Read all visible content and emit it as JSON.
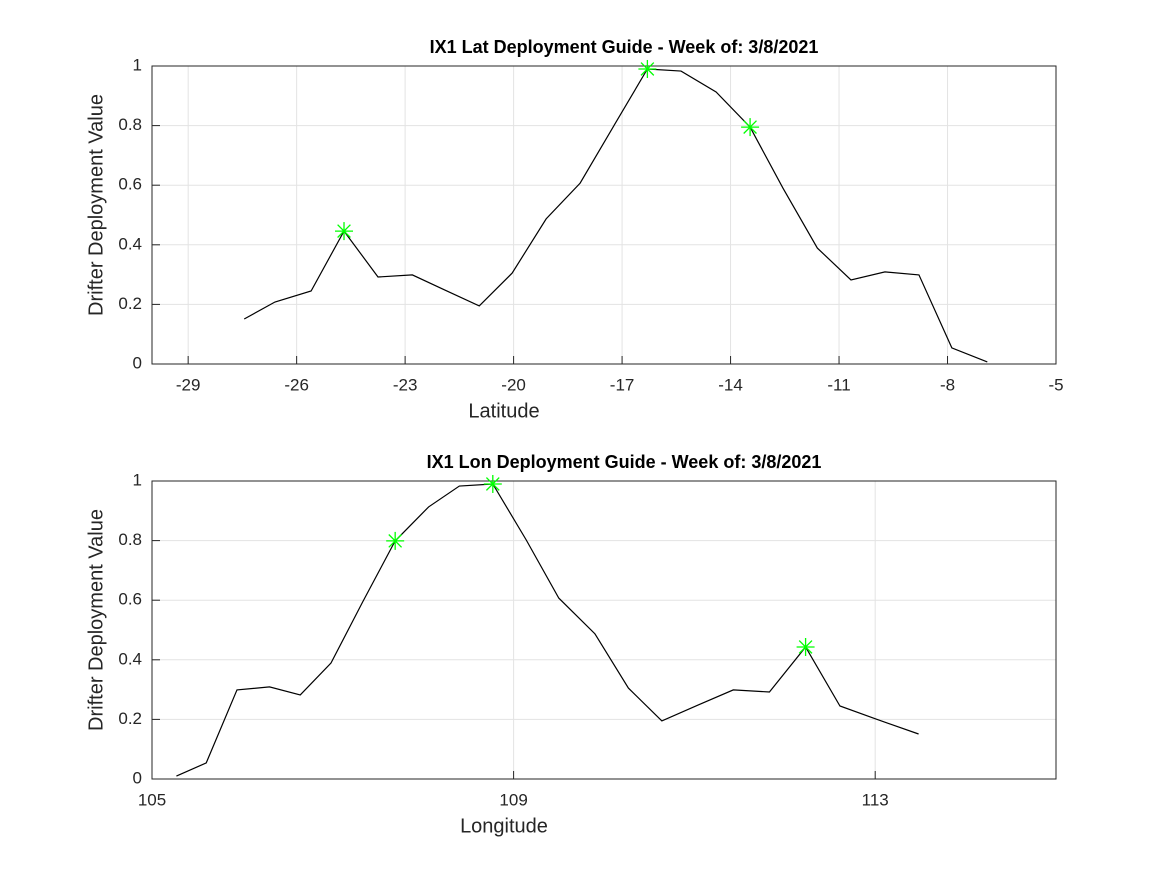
{
  "chart_data": [
    {
      "type": "line",
      "title": "IX1 Lat Deployment Guide - Week of: 3/8/2021",
      "xlabel": "Latitude",
      "ylabel": "Drifter Deployment Value",
      "xlim": [
        -30,
        -5
      ],
      "xticks": [
        -29,
        -26,
        -23,
        -20,
        -17,
        -14,
        -11,
        -8,
        -5
      ],
      "ylim": [
        0,
        1
      ],
      "yticks": [
        0,
        0.2,
        0.4,
        0.6,
        0.8,
        1
      ],
      "grid": true,
      "series": [
        {
          "color": "#000000",
          "x": [
            -27.45,
            -26.6,
            -25.6,
            -24.69,
            -23.75,
            -22.8,
            -21.9,
            -20.95,
            -20.04,
            -19.1,
            -18.16,
            -17.2,
            -16.3,
            -15.37,
            -14.4,
            -13.46,
            -12.55,
            -11.6,
            -10.67,
            -9.73,
            -8.79,
            -7.88,
            -6.9
          ],
          "values": [
            0.151,
            0.208,
            0.245,
            0.446,
            0.292,
            0.299,
            0.248,
            0.195,
            0.305,
            0.487,
            0.607,
            0.805,
            0.99,
            0.983,
            0.913,
            0.795,
            0.59,
            0.389,
            0.282,
            0.309,
            0.299,
            0.054,
            0.007
          ]
        },
        {
          "color": "#00ff00",
          "marker": "*",
          "line": false,
          "x": [
            -24.69,
            -16.3,
            -13.46
          ],
          "values": [
            0.446,
            0.99,
            0.795
          ]
        }
      ]
    },
    {
      "type": "line",
      "title": "IX1 Lon Deployment Guide - Week of: 3/8/2021",
      "xlabel": "Longitude",
      "ylabel": "Drifter Deployment Value",
      "xlim": [
        105,
        115
      ],
      "xticks": [
        105,
        109,
        113
      ],
      "ylim": [
        0,
        1
      ],
      "yticks": [
        0,
        0.2,
        0.4,
        0.6,
        0.8,
        1
      ],
      "grid": true,
      "series": [
        {
          "color": "#000000",
          "x": [
            105.27,
            105.6,
            105.94,
            106.3,
            106.64,
            106.98,
            107.33,
            107.69,
            108.06,
            108.4,
            108.77,
            109.14,
            109.5,
            109.9,
            110.27,
            110.64,
            111.04,
            111.43,
            111.83,
            112.23,
            112.61,
            113.01,
            113.48
          ],
          "values": [
            0.01,
            0.054,
            0.299,
            0.309,
            0.282,
            0.389,
            0.594,
            0.799,
            0.913,
            0.983,
            0.99,
            0.802,
            0.607,
            0.487,
            0.305,
            0.195,
            0.248,
            0.299,
            0.292,
            0.443,
            0.245,
            0.201,
            0.151
          ]
        },
        {
          "color": "#00ff00",
          "marker": "*",
          "line": false,
          "x": [
            107.69,
            108.77,
            112.23
          ],
          "values": [
            0.799,
            0.99,
            0.443
          ]
        }
      ]
    }
  ]
}
